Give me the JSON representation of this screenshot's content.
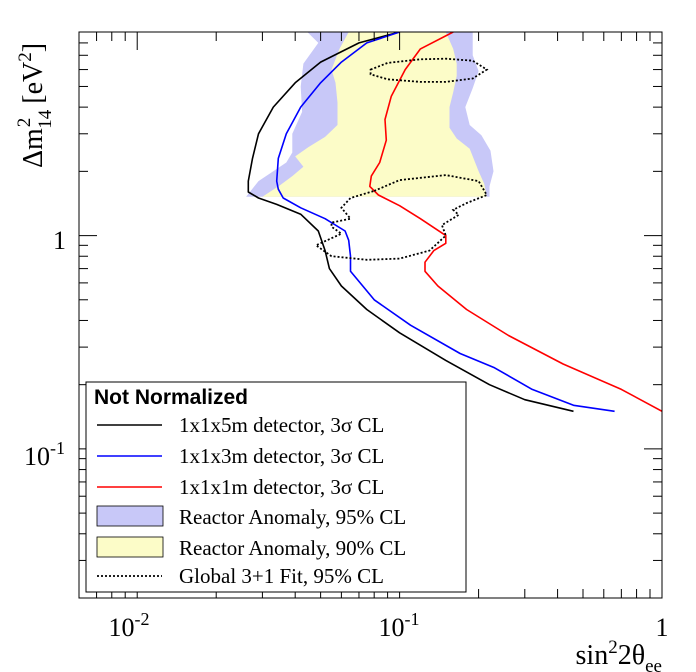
{
  "chart_data": {
    "type": "line",
    "x_scale": "log",
    "y_scale": "log",
    "xlim": [
      0.006,
      1.0
    ],
    "ylim": [
      0.02,
      9.0
    ],
    "ylabel": {
      "base": "Δm",
      "sup": "2",
      "sub": "14",
      "unit": "[eV",
      "unit_sup": "2",
      "close": "]"
    },
    "xlabel": {
      "prefix": "sin",
      "sup": "2",
      "mid": "2θ",
      "sub": "ee"
    },
    "x_ticks": [
      {
        "base": "10",
        "exp": "-2",
        "value": 0.01
      },
      {
        "base": "10",
        "exp": "-1",
        "value": 0.1
      },
      {
        "label": "1",
        "value": 1.0
      }
    ],
    "y_ticks": [
      {
        "base": "10",
        "exp": "-1",
        "value": 0.1
      },
      {
        "label": "1",
        "value": 1.0
      }
    ],
    "legend": {
      "title": "Not Normalized",
      "position": "bottom-left",
      "entries": [
        {
          "label": "1x1x5m detector, 3σ CL",
          "kind": "line",
          "color": "#000000",
          "dash": false
        },
        {
          "label": "1x1x3m detector, 3σ CL",
          "kind": "line",
          "color": "#0000ff",
          "dash": false
        },
        {
          "label": "1x1x1m detector, 3σ CL",
          "kind": "line",
          "color": "#ff0000",
          "dash": false
        },
        {
          "label": "Reactor Anomaly, 95% CL",
          "kind": "box",
          "color": "#c8c8f8"
        },
        {
          "label": "Reactor Anomaly, 90% CL",
          "kind": "box",
          "color": "#fcfcc8"
        },
        {
          "label": "Global 3+1 Fit,  95% CL",
          "kind": "line",
          "color": "#000000",
          "dash": true
        }
      ]
    },
    "series": [
      {
        "name": "1x1x5m detector, 3σ CL",
        "color": "#000000",
        "points": [
          [
            0.1,
            9.0
          ],
          [
            0.07,
            8.0
          ],
          [
            0.05,
            6.5
          ],
          [
            0.04,
            5.2
          ],
          [
            0.033,
            4.0
          ],
          [
            0.029,
            3.0
          ],
          [
            0.0275,
            2.3
          ],
          [
            0.0265,
            1.8
          ],
          [
            0.0265,
            1.6
          ],
          [
            0.029,
            1.5
          ],
          [
            0.034,
            1.4
          ],
          [
            0.042,
            1.26
          ],
          [
            0.049,
            1.05
          ],
          [
            0.052,
            0.85
          ],
          [
            0.054,
            0.7
          ],
          [
            0.06,
            0.58
          ],
          [
            0.075,
            0.45
          ],
          [
            0.1,
            0.35
          ],
          [
            0.15,
            0.26
          ],
          [
            0.22,
            0.2
          ],
          [
            0.3,
            0.17
          ],
          [
            0.46,
            0.15
          ]
        ]
      },
      {
        "name": "1x1x3m detector, 3σ CL",
        "color": "#0000ff",
        "points": [
          [
            0.1,
            9.0
          ],
          [
            0.075,
            8.0
          ],
          [
            0.06,
            6.5
          ],
          [
            0.05,
            5.2
          ],
          [
            0.042,
            4.0
          ],
          [
            0.037,
            3.0
          ],
          [
            0.0345,
            2.3
          ],
          [
            0.034,
            1.8
          ],
          [
            0.0345,
            1.65
          ],
          [
            0.036,
            1.5
          ],
          [
            0.042,
            1.35
          ],
          [
            0.052,
            1.2
          ],
          [
            0.062,
            1.05
          ],
          [
            0.064,
            0.95
          ],
          [
            0.065,
            0.8
          ],
          [
            0.065,
            0.68
          ],
          [
            0.08,
            0.5
          ],
          [
            0.11,
            0.38
          ],
          [
            0.17,
            0.28
          ],
          [
            0.23,
            0.24
          ],
          [
            0.32,
            0.19
          ],
          [
            0.46,
            0.16
          ],
          [
            0.66,
            0.15
          ]
        ]
      },
      {
        "name": "1x1x1m detector, 3σ CL",
        "color": "#ff0000",
        "points": [
          [
            0.16,
            9.0
          ],
          [
            0.12,
            7.5
          ],
          [
            0.105,
            6.0
          ],
          [
            0.093,
            4.5
          ],
          [
            0.088,
            3.5
          ],
          [
            0.089,
            2.8
          ],
          [
            0.084,
            2.2
          ],
          [
            0.078,
            1.9
          ],
          [
            0.077,
            1.7
          ],
          [
            0.083,
            1.55
          ],
          [
            0.1,
            1.38
          ],
          [
            0.12,
            1.2
          ],
          [
            0.15,
            1.0
          ],
          [
            0.15,
            0.92
          ],
          [
            0.135,
            0.85
          ],
          [
            0.125,
            0.75
          ],
          [
            0.125,
            0.68
          ],
          [
            0.14,
            0.58
          ],
          [
            0.18,
            0.45
          ],
          [
            0.26,
            0.34
          ],
          [
            0.42,
            0.25
          ],
          [
            0.7,
            0.19
          ],
          [
            1.0,
            0.15
          ]
        ]
      }
    ],
    "global_fit_contours": [
      {
        "name": "Global 3+1 Fit, 95% CL (upper)",
        "style": "dashed",
        "points": [
          [
            0.0775,
            6.0
          ],
          [
            0.09,
            6.45
          ],
          [
            0.12,
            6.7
          ],
          [
            0.15,
            6.75
          ],
          [
            0.19,
            6.6
          ],
          [
            0.215,
            6.0
          ],
          [
            0.19,
            5.45
          ],
          [
            0.15,
            5.25
          ],
          [
            0.12,
            5.25
          ],
          [
            0.09,
            5.4
          ],
          [
            0.0775,
            5.7
          ],
          [
            0.0775,
            6.0
          ]
        ]
      },
      {
        "name": "Global 3+1 Fit, 95% CL (lower)",
        "style": "dashed",
        "points": [
          [
            0.08,
            1.62
          ],
          [
            0.1,
            1.82
          ],
          [
            0.15,
            1.92
          ],
          [
            0.2,
            1.8
          ],
          [
            0.215,
            1.55
          ],
          [
            0.18,
            1.42
          ],
          [
            0.16,
            1.32
          ],
          [
            0.168,
            1.25
          ],
          [
            0.145,
            1.12
          ],
          [
            0.15,
            1.0
          ],
          [
            0.13,
            0.85
          ],
          [
            0.1,
            0.78
          ],
          [
            0.075,
            0.77
          ],
          [
            0.055,
            0.8
          ],
          [
            0.048,
            0.9
          ],
          [
            0.06,
            1.02
          ],
          [
            0.055,
            1.1
          ],
          [
            0.055,
            1.15
          ],
          [
            0.065,
            1.2
          ],
          [
            0.06,
            1.35
          ],
          [
            0.065,
            1.5
          ],
          [
            0.08,
            1.62
          ]
        ]
      }
    ],
    "reactor_anomaly": [
      {
        "name": "Reactor Anomaly, 95% CL",
        "color": "#c8c8f8",
        "points": [
          [
            0.0445,
            9.0
          ],
          [
            0.049,
            8.0
          ],
          [
            0.043,
            6.4
          ],
          [
            0.042,
            5.0
          ],
          [
            0.0425,
            3.8
          ],
          [
            0.039,
            3.0
          ],
          [
            0.039,
            2.45
          ],
          [
            0.037,
            2.2
          ],
          [
            0.033,
            2.0
          ],
          [
            0.029,
            1.8
          ],
          [
            0.026,
            1.52
          ],
          [
            0.22,
            1.52
          ],
          [
            0.22,
            1.7
          ],
          [
            0.228,
            2.0
          ],
          [
            0.222,
            2.5
          ],
          [
            0.205,
            2.95
          ],
          [
            0.185,
            3.3
          ],
          [
            0.178,
            4.0
          ],
          [
            0.19,
            4.9
          ],
          [
            0.2,
            5.9
          ],
          [
            0.19,
            7.0
          ],
          [
            0.19,
            9.0
          ]
        ]
      },
      {
        "name": "Reactor Anomaly, 90% CL",
        "color": "#fcfcc8",
        "points": [
          [
            0.064,
            9.0
          ],
          [
            0.059,
            7.5
          ],
          [
            0.055,
            6.0
          ],
          [
            0.057,
            5.2
          ],
          [
            0.058,
            4.2
          ],
          [
            0.058,
            3.3
          ],
          [
            0.052,
            2.9
          ],
          [
            0.045,
            2.6
          ],
          [
            0.04,
            2.35
          ],
          [
            0.043,
            2.1
          ],
          [
            0.039,
            1.9
          ],
          [
            0.035,
            1.72
          ],
          [
            0.03,
            1.52
          ],
          [
            0.215,
            1.52
          ],
          [
            0.21,
            1.75
          ],
          [
            0.2,
            2.0
          ],
          [
            0.185,
            2.55
          ],
          [
            0.165,
            2.85
          ],
          [
            0.155,
            3.2
          ],
          [
            0.155,
            4.0
          ],
          [
            0.16,
            4.7
          ],
          [
            0.165,
            5.6
          ],
          [
            0.165,
            6.4
          ],
          [
            0.16,
            7.5
          ],
          [
            0.15,
            9.0
          ]
        ]
      }
    ]
  }
}
